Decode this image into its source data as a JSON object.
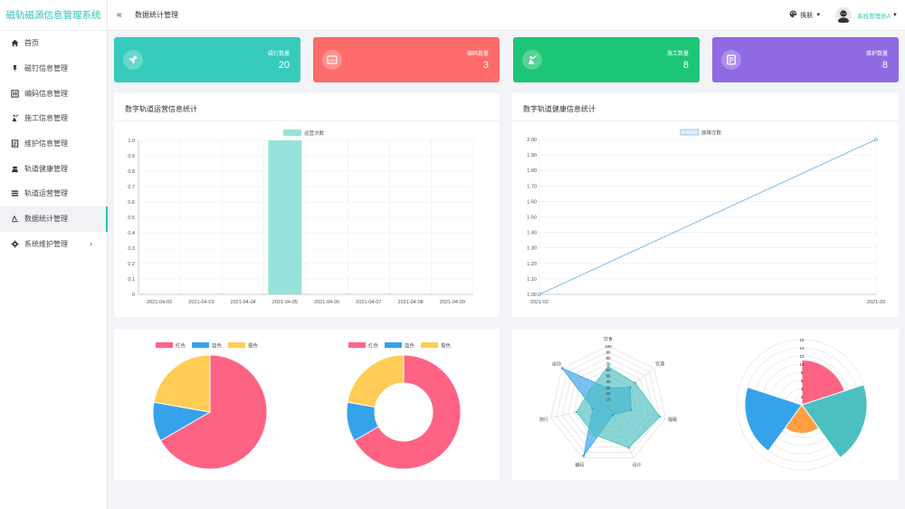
{
  "app_title": "磁轨磁源信息管理系统",
  "sidebar": {
    "items": [
      {
        "label": "首页",
        "icon": "home-icon"
      },
      {
        "label": "磁钉信息管理",
        "icon": "pin-icon"
      },
      {
        "label": "编码信息管理",
        "icon": "code-icon"
      },
      {
        "label": "施工信息管理",
        "icon": "construction-icon"
      },
      {
        "label": "维护信息管理",
        "icon": "maintenance-icon"
      },
      {
        "label": "轨道健康管理",
        "icon": "health-icon"
      },
      {
        "label": "轨道运营管理",
        "icon": "operation-icon"
      },
      {
        "label": "数据统计管理",
        "icon": "chart-icon"
      },
      {
        "label": "系统维护管理",
        "icon": "gear-icon"
      }
    ]
  },
  "header": {
    "page_title": "数据统计管理",
    "skin_label": "换肤",
    "user_name": "系统管理员A"
  },
  "cards": [
    {
      "label": "磁钉数量",
      "value": "20",
      "color": "#36cbbc",
      "icon": "pin-icon"
    },
    {
      "label": "编码数量",
      "value": "3",
      "color": "#fe6b6b",
      "icon": "code-icon"
    },
    {
      "label": "施工数量",
      "value": "8",
      "color": "#1dc577",
      "icon": "construction-icon"
    },
    {
      "label": "维护数量",
      "value": "8",
      "color": "#8f6be3",
      "icon": "maintenance-icon"
    }
  ],
  "panels": {
    "bar_title": "数字轨道运营信息统计",
    "line_title": "数字轨道健康信息统计"
  },
  "chart_data": [
    {
      "type": "bar",
      "categories": [
        "2021-04-02",
        "2021-04-03",
        "2021-04-04",
        "2021-04-05",
        "2021-04-06",
        "2021-04-07",
        "2021-04-08",
        "2021-04-09"
      ],
      "series": [
        {
          "name": "运营次数",
          "values": [
            0,
            0,
            0,
            1,
            0,
            0,
            0,
            0
          ]
        }
      ],
      "y_ticks": [
        "0",
        "0.1",
        "0.2",
        "0.3",
        "0.4",
        "0.5",
        "0.6",
        "0.7",
        "0.8",
        "0.9",
        "1.0"
      ],
      "ylim": [
        0,
        1
      ],
      "color": "#95e3da",
      "grid": true,
      "legend": "top-center"
    },
    {
      "type": "line",
      "x": [
        "2021-02",
        "2021-03"
      ],
      "series": [
        {
          "name": "故障次数",
          "values": [
            1,
            2
          ]
        }
      ],
      "y_ticks": [
        "1.00",
        "1.10",
        "1.20",
        "1.30",
        "1.40",
        "1.50",
        "1.60",
        "1.70",
        "1.80",
        "1.90",
        "2.00"
      ],
      "ylim": [
        1,
        2
      ],
      "color": "#5aaee3",
      "grid": true,
      "legend": "top-center"
    },
    {
      "type": "pie",
      "labels": [
        "红色",
        "蓝色",
        "橙色"
      ],
      "values": [
        300,
        50,
        100
      ],
      "colors": [
        "#ff6384",
        "#36a2eb",
        "#ffcd56"
      ],
      "legend": "top"
    },
    {
      "type": "pie",
      "variant": "doughnut",
      "labels": [
        "红色",
        "蓝色",
        "橙色"
      ],
      "values": [
        300,
        50,
        100
      ],
      "colors": [
        "#ff6384",
        "#36a2eb",
        "#ffcd56"
      ],
      "legend": "top"
    },
    {
      "type": "radar",
      "axes": [
        "饮食",
        "饮酒",
        "睡眠",
        "设计",
        "编码",
        "骑行",
        "运动"
      ],
      "r_ticks": [
        "10",
        "20",
        "30",
        "40",
        "50",
        "60",
        "70",
        "80",
        "90",
        "100"
      ],
      "rlim": [
        0,
        100
      ],
      "series": [
        {
          "values": [
            65,
            59,
            90,
            81,
            56,
            55,
            40
          ],
          "color": "#4bc0c0"
        },
        {
          "values": [
            28,
            48,
            40,
            19,
            96,
            27,
            100
          ],
          "color": "#36a2eb"
        }
      ]
    },
    {
      "type": "polarArea",
      "values": [
        11,
        16,
        7,
        14
      ],
      "colors": [
        "#ff6384",
        "#4bc0c0",
        "#ff9f40",
        "#36a2eb",
        "#c9cbcf"
      ],
      "r_ticks": [
        "2",
        "4",
        "6",
        "8",
        "10",
        "12",
        "14",
        "16"
      ],
      "rlim": [
        0,
        16
      ]
    }
  ]
}
